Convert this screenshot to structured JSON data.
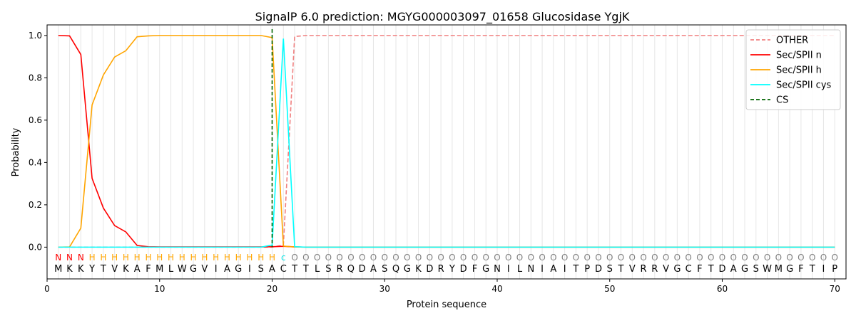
{
  "chart_data": {
    "type": "line",
    "title": "SignalP 6.0 prediction: MGYG000003097_01658 Glucosidase YgjK",
    "xlabel": "Protein sequence",
    "ylabel": "Probability",
    "xlim": [
      0,
      71
    ],
    "ylim": [
      -0.15,
      1.05
    ],
    "xticks": [
      0,
      10,
      20,
      30,
      40,
      50,
      60,
      70
    ],
    "yticks": [
      0.0,
      0.2,
      0.4,
      0.6,
      0.8,
      1.0
    ],
    "xtick_labels": [
      "0",
      "10",
      "20",
      "30",
      "40",
      "50",
      "60",
      "70"
    ],
    "ytick_labels": [
      "0.0",
      "0.2",
      "0.4",
      "0.6",
      "0.8",
      "1.0"
    ],
    "grid": "vertical lines at each residue",
    "legend_position": "top-right",
    "sequence": [
      "M",
      "K",
      "K",
      "Y",
      "T",
      "V",
      "K",
      "A",
      "F",
      "M",
      "L",
      "W",
      "G",
      "V",
      "I",
      "A",
      "G",
      "I",
      "S",
      "A",
      "C",
      "T",
      "T",
      "L",
      "S",
      "R",
      "Q",
      "D",
      "A",
      "S",
      "Q",
      "G",
      "K",
      "D",
      "R",
      "Y",
      "D",
      "F",
      "G",
      "N",
      "I",
      "L",
      "N",
      "I",
      "A",
      "I",
      "T",
      "P",
      "D",
      "S",
      "T",
      "V",
      "R",
      "R",
      "V",
      "G",
      "C",
      "F",
      "T",
      "D",
      "A",
      "G",
      "S",
      "W",
      "M",
      "G",
      "F",
      "T",
      "I",
      "P"
    ],
    "labels": [
      "N",
      "N",
      "N",
      "H",
      "H",
      "H",
      "H",
      "H",
      "H",
      "H",
      "H",
      "H",
      "H",
      "H",
      "H",
      "H",
      "H",
      "H",
      "H",
      "H",
      "c",
      "O",
      "O",
      "O",
      "O",
      "O",
      "O",
      "O",
      "O",
      "O",
      "O",
      "O",
      "O",
      "O",
      "O",
      "O",
      "O",
      "O",
      "O",
      "O",
      "O",
      "O",
      "O",
      "O",
      "O",
      "O",
      "O",
      "O",
      "O",
      "O",
      "O",
      "O",
      "O",
      "O",
      "O",
      "O",
      "O",
      "O",
      "O",
      "O",
      "O",
      "O",
      "O",
      "O",
      "O",
      "O",
      "O",
      "O",
      "O",
      "O"
    ],
    "label_colors": {
      "N": "#ff0000",
      "H": "#ffa500",
      "c": "#00e5e5",
      "O": "#808080"
    },
    "cs_position": 20,
    "series": [
      {
        "name": "OTHER",
        "color": "#f08080",
        "style": "dashed",
        "values": [
          0,
          0,
          0,
          0,
          0,
          0,
          0,
          0,
          0,
          0,
          0,
          0,
          0,
          0,
          0,
          0,
          0,
          0,
          0,
          0,
          0.01,
          0.995,
          1,
          1,
          1,
          1,
          1,
          1,
          1,
          1,
          1,
          1,
          1,
          1,
          1,
          1,
          1,
          1,
          1,
          1,
          1,
          1,
          1,
          1,
          1,
          1,
          1,
          1,
          1,
          1,
          1,
          1,
          1,
          1,
          1,
          1,
          1,
          1,
          1,
          1,
          1,
          1,
          1,
          1,
          1,
          1,
          1,
          1,
          1,
          1
        ]
      },
      {
        "name": "Sec/SPII n",
        "color": "#ff0000",
        "style": "solid",
        "values": [
          1.0,
          0.998,
          0.91,
          0.325,
          0.185,
          0.102,
          0.072,
          0.008,
          0.002,
          0.001,
          0.001,
          0.001,
          0.001,
          0.001,
          0.001,
          0.001,
          0.001,
          0.001,
          0.001,
          0.002,
          0.004,
          0.001,
          0,
          0,
          0,
          0,
          0,
          0,
          0,
          0,
          0,
          0,
          0,
          0,
          0,
          0,
          0,
          0,
          0,
          0,
          0,
          0,
          0,
          0,
          0,
          0,
          0,
          0,
          0,
          0,
          0,
          0,
          0,
          0,
          0,
          0,
          0,
          0,
          0,
          0,
          0,
          0,
          0,
          0,
          0,
          0,
          0,
          0,
          0,
          0
        ]
      },
      {
        "name": "Sec/SPII h",
        "color": "#ffa500",
        "style": "solid",
        "values": [
          0,
          0.001,
          0.09,
          0.672,
          0.813,
          0.898,
          0.928,
          0.994,
          0.998,
          1.0,
          1.0,
          1.0,
          1.0,
          1.0,
          1.0,
          1.0,
          1.0,
          1.0,
          1.0,
          0.99,
          0.005,
          0.001,
          0,
          0,
          0,
          0,
          0,
          0,
          0,
          0,
          0,
          0,
          0,
          0,
          0,
          0,
          0,
          0,
          0,
          0,
          0,
          0,
          0,
          0,
          0,
          0,
          0,
          0,
          0,
          0,
          0,
          0,
          0,
          0,
          0,
          0,
          0,
          0,
          0,
          0,
          0,
          0,
          0,
          0,
          0,
          0,
          0,
          0,
          0,
          0
        ]
      },
      {
        "name": "Sec/SPII cys",
        "color": "#00ffff",
        "style": "solid",
        "values": [
          0,
          0,
          0,
          0,
          0,
          0,
          0,
          0,
          0,
          0,
          0,
          0,
          0,
          0,
          0,
          0,
          0,
          0,
          0,
          0.01,
          0.985,
          0.002,
          0,
          0,
          0,
          0,
          0,
          0,
          0,
          0,
          0,
          0,
          0,
          0,
          0,
          0,
          0,
          0,
          0,
          0,
          0,
          0,
          0,
          0,
          0,
          0,
          0,
          0,
          0,
          0,
          0,
          0,
          0,
          0,
          0,
          0,
          0,
          0,
          0,
          0,
          0,
          0,
          0,
          0,
          0,
          0,
          0,
          0,
          0,
          0
        ]
      },
      {
        "name": "CS",
        "color": "#006400",
        "style": "dashed-vertical"
      }
    ]
  }
}
